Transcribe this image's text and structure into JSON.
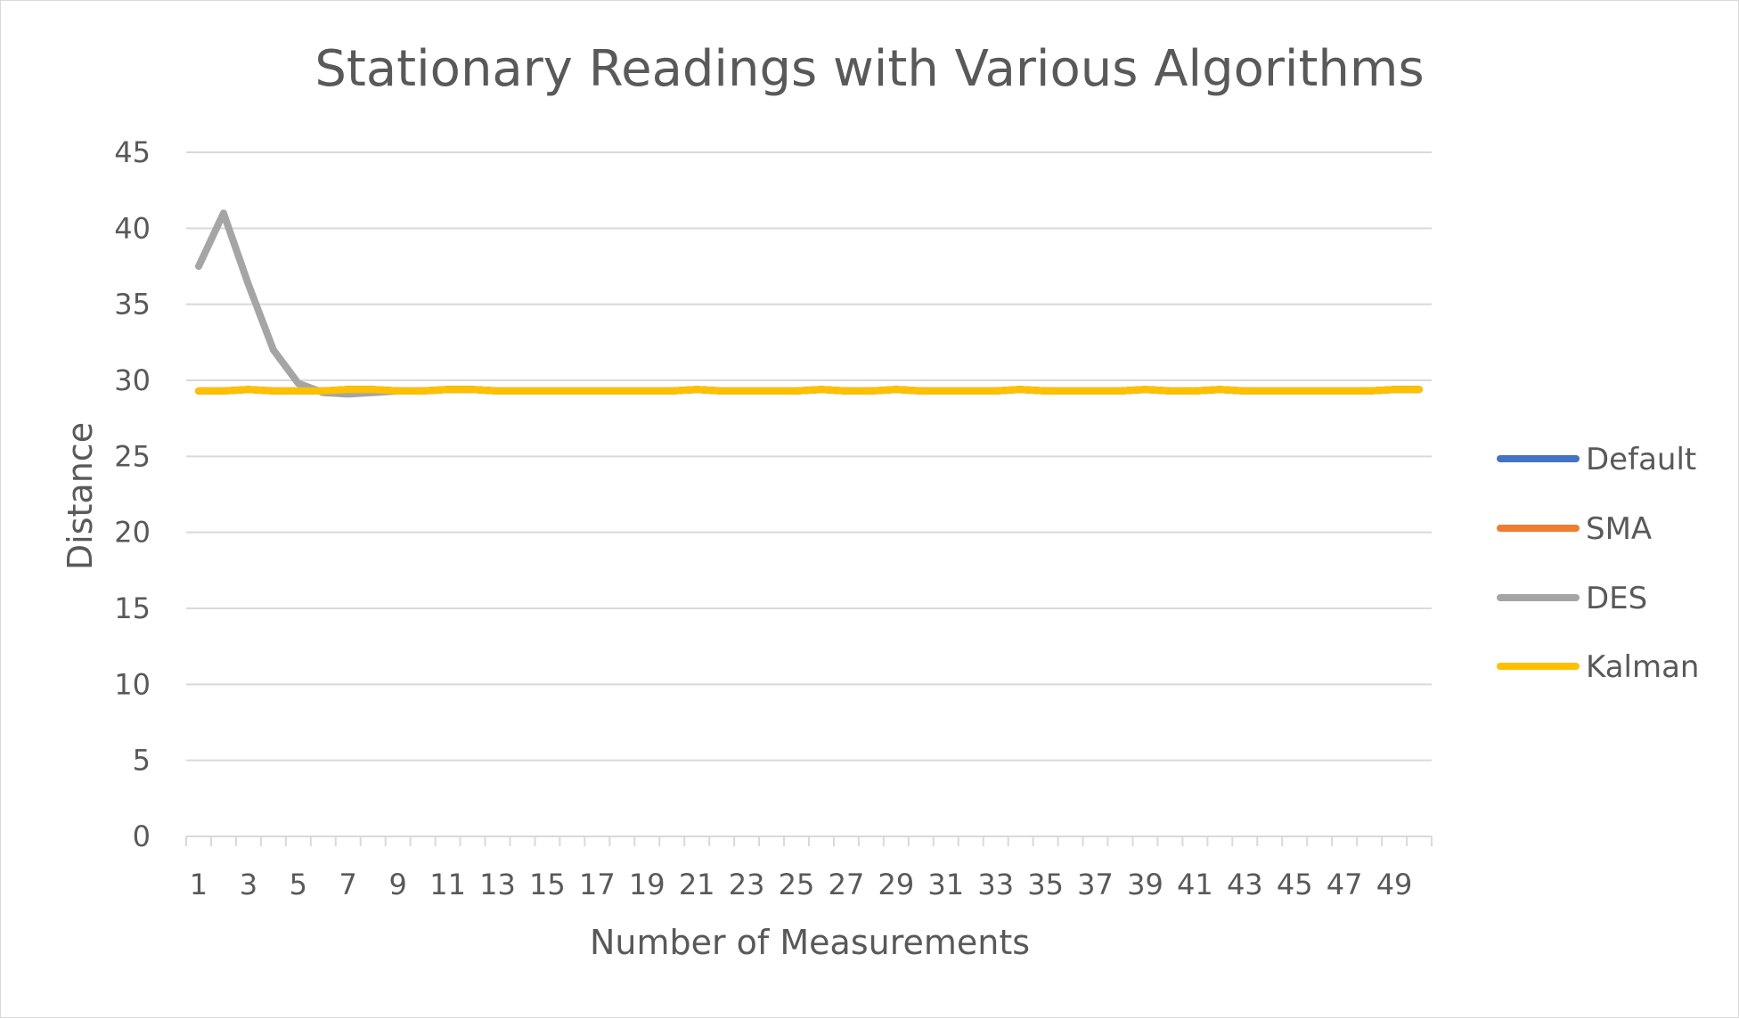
{
  "chart_data": {
    "type": "line",
    "title": "Stationary Readings with Various Algorithms",
    "xlabel": "Number of  Measurements",
    "ylabel": "Distance",
    "ylim": [
      0,
      45
    ],
    "yticks": [
      0,
      5,
      10,
      15,
      20,
      25,
      30,
      35,
      40,
      45
    ],
    "x": [
      1,
      2,
      3,
      4,
      5,
      6,
      7,
      8,
      9,
      10,
      11,
      12,
      13,
      14,
      15,
      16,
      17,
      18,
      19,
      20,
      21,
      22,
      23,
      24,
      25,
      26,
      27,
      28,
      29,
      30,
      31,
      32,
      33,
      34,
      35,
      36,
      37,
      38,
      39,
      40,
      41,
      42,
      43,
      44,
      45,
      46,
      47,
      48,
      49,
      50
    ],
    "x_tick_labels": [
      "1",
      "3",
      "5",
      "7",
      "9",
      "11",
      "13",
      "15",
      "17",
      "19",
      "21",
      "23",
      "25",
      "27",
      "29",
      "31",
      "33",
      "35",
      "37",
      "39",
      "41",
      "43",
      "45",
      "47",
      "49"
    ],
    "grid": true,
    "legend_position": "right",
    "series": [
      {
        "name": "Default",
        "color": "#4472c4",
        "values": [
          29.3,
          29.3,
          29.4,
          29.3,
          29.3,
          29.3,
          29.4,
          29.4,
          29.3,
          29.3,
          29.4,
          29.4,
          29.3,
          29.3,
          29.3,
          29.3,
          29.3,
          29.3,
          29.3,
          29.3,
          29.4,
          29.3,
          29.3,
          29.3,
          29.3,
          29.4,
          29.3,
          29.3,
          29.4,
          29.3,
          29.3,
          29.3,
          29.3,
          29.4,
          29.3,
          29.3,
          29.3,
          29.3,
          29.4,
          29.3,
          29.3,
          29.4,
          29.3,
          29.3,
          29.3,
          29.3,
          29.3,
          29.3,
          29.4,
          29.4
        ]
      },
      {
        "name": "SMA",
        "color": "#ed7d31",
        "values": [
          29.3,
          29.3,
          29.4,
          29.3,
          29.3,
          29.3,
          29.4,
          29.4,
          29.3,
          29.3,
          29.4,
          29.4,
          29.3,
          29.3,
          29.3,
          29.3,
          29.3,
          29.3,
          29.3,
          29.3,
          29.4,
          29.3,
          29.3,
          29.3,
          29.3,
          29.4,
          29.3,
          29.3,
          29.4,
          29.3,
          29.3,
          29.3,
          29.3,
          29.4,
          29.3,
          29.3,
          29.3,
          29.3,
          29.4,
          29.3,
          29.3,
          29.4,
          29.3,
          29.3,
          29.3,
          29.3,
          29.3,
          29.3,
          29.4,
          29.4
        ]
      },
      {
        "name": "DES",
        "color": "#a5a5a5",
        "values": [
          37.5,
          41.0,
          36.3,
          32.0,
          29.8,
          29.2,
          29.1,
          29.2,
          29.3,
          29.3,
          29.4,
          29.4,
          29.3,
          29.3,
          29.3,
          29.3,
          29.3,
          29.3,
          29.3,
          29.3,
          29.4,
          29.3,
          29.3,
          29.3,
          29.3,
          29.4,
          29.3,
          29.3,
          29.4,
          29.3,
          29.3,
          29.3,
          29.3,
          29.4,
          29.3,
          29.3,
          29.3,
          29.3,
          29.4,
          29.3,
          29.3,
          29.4,
          29.3,
          29.3,
          29.3,
          29.3,
          29.3,
          29.3,
          29.4,
          29.4
        ]
      },
      {
        "name": "Kalman",
        "color": "#ffc000",
        "values": [
          29.3,
          29.3,
          29.4,
          29.3,
          29.3,
          29.3,
          29.4,
          29.4,
          29.3,
          29.3,
          29.4,
          29.4,
          29.3,
          29.3,
          29.3,
          29.3,
          29.3,
          29.3,
          29.3,
          29.3,
          29.4,
          29.3,
          29.3,
          29.3,
          29.3,
          29.4,
          29.3,
          29.3,
          29.4,
          29.3,
          29.3,
          29.3,
          29.3,
          29.4,
          29.3,
          29.3,
          29.3,
          29.3,
          29.4,
          29.3,
          29.3,
          29.4,
          29.3,
          29.3,
          29.3,
          29.3,
          29.3,
          29.3,
          29.4,
          29.4
        ]
      }
    ]
  }
}
